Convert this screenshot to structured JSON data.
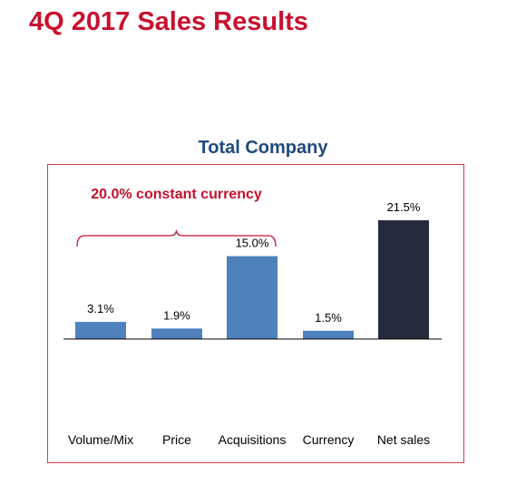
{
  "page_title": "4Q 2017 Sales Results",
  "colors": {
    "title_red": "#c8102e",
    "chart_title_blue": "#1f497d",
    "frame_border": "#d9384a",
    "bar_blue": "#4f81bd",
    "bar_dark": "#252b3a",
    "label_text": "#000000"
  },
  "chart_data": {
    "type": "bar",
    "title": "Total Company",
    "categories": [
      "Volume/Mix",
      "Price",
      "Acquisitions",
      "Currency",
      "Net sales"
    ],
    "values": [
      3.1,
      1.9,
      15.0,
      1.5,
      21.5
    ],
    "data_labels": [
      "3.1%",
      "1.9%",
      "15.0%",
      "1.5%",
      "21.5%"
    ],
    "highlight_category": "Net sales",
    "ylim": [
      0,
      21.5
    ],
    "grid": false,
    "legend": "none",
    "annotation": {
      "text": "20.0% constant currency",
      "spans": [
        "Volume/Mix",
        "Price",
        "Acquisitions"
      ]
    }
  }
}
